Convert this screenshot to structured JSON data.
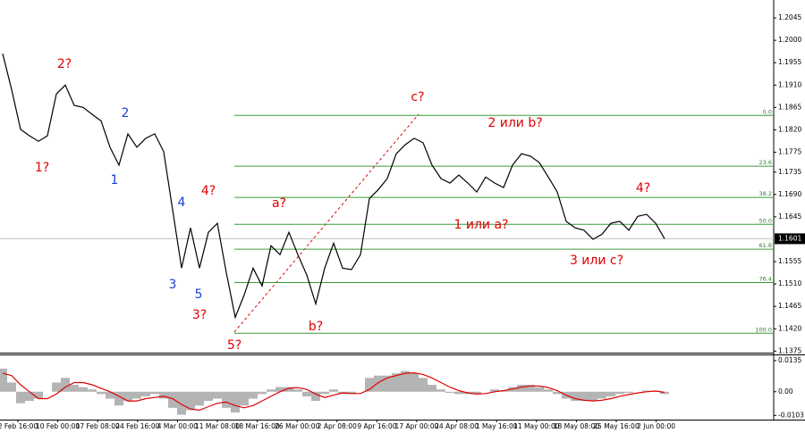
{
  "chart_data": [
    {
      "type": "line",
      "series": [
        {
          "color": "#000000",
          "values": [
            1.1973,
            1.1901,
            1.1821,
            1.1808,
            1.1797,
            1.1808,
            1.1892,
            1.191,
            1.1869,
            1.1865,
            1.1851,
            1.1838,
            1.1785,
            1.1749,
            1.1812,
            1.1785,
            1.1803,
            1.1812,
            1.1776,
            1.1659,
            1.1542,
            1.1623,
            1.1542,
            1.1614,
            1.1632,
            1.1533,
            1.1443,
            1.1488,
            1.1542,
            1.1506,
            1.1587,
            1.1569,
            1.1614,
            1.1569,
            1.1528,
            1.147,
            1.1542,
            1.1592,
            1.1542,
            1.1539,
            1.1569,
            1.1682,
            1.17,
            1.1722,
            1.1772,
            1.179,
            1.1803,
            1.1794,
            1.1749,
            1.1722,
            1.1713,
            1.1729,
            1.1713,
            1.1695,
            1.1725,
            1.1713,
            1.1704,
            1.1749,
            1.1772,
            1.1767,
            1.1754,
            1.1725,
            1.1695,
            1.1636,
            1.1623,
            1.1618,
            1.16,
            1.161,
            1.1632,
            1.1636,
            1.1618,
            1.1646,
            1.165,
            1.1632,
            1.1601
          ]
        }
      ],
      "ylim": [
        1.1372,
        1.2081
      ],
      "yticks": [
        1.2045,
        {
          "value": 1.2,
          "label": "1.2000"
        },
        1.1955,
        {
          "value": 1.191,
          "label": "1.1910"
        },
        1.1865,
        {
          "value": 1.182,
          "label": "1.1820"
        },
        1.1775,
        1.1735,
        {
          "value": 1.169,
          "label": "1.1690"
        },
        1.1645,
        1.1555,
        {
          "value": 1.151,
          "label": "1.1510"
        },
        1.1465,
        {
          "value": 1.142,
          "label": "1.1420"
        },
        1.1375
      ],
      "current_price": 1.1601,
      "fib_color": "#3c9a3c",
      "fib_levels": [
        {
          "label": "0.0",
          "value": 1.1849
        },
        {
          "label": "23.6",
          "value": 1.1747
        },
        {
          "label": "38.2",
          "value": 1.1684
        },
        {
          "label": "50.0",
          "value": 1.163
        },
        {
          "label": "61.8",
          "value": 1.158
        },
        {
          "label": "76.4",
          "value": 1.1513
        },
        {
          "label": "100.0",
          "value": 1.1411
        }
      ],
      "wave_labels": [
        {
          "text": "2?",
          "color": "#e00000"
        },
        {
          "text": "1?",
          "color": "#e00000"
        },
        {
          "text": "1",
          "color": "#1a3fd6"
        },
        {
          "text": "2",
          "color": "#1a3fd6"
        },
        {
          "text": "3",
          "color": "#1a3fd6"
        },
        {
          "text": "4",
          "color": "#1a3fd6"
        },
        {
          "text": "5",
          "color": "#1a3fd6"
        },
        {
          "text": "4?",
          "color": "#e00000"
        },
        {
          "text": "3?",
          "color": "#e00000"
        },
        {
          "text": "5?",
          "color": "#e00000"
        },
        {
          "text": "a?",
          "color": "#e00000"
        },
        {
          "text": "b?",
          "color": "#e00000"
        },
        {
          "text": "c?",
          "color": "#e00000"
        },
        {
          "text": "2 или b?",
          "color": "#e00000"
        },
        {
          "text": "1 или a?",
          "color": "#e00000"
        },
        {
          "text": "3 или c?",
          "color": "#e00000"
        },
        {
          "text": "4?",
          "color": "#e00000"
        }
      ]
    },
    {
      "type": "bar",
      "color": "#b4b4b4",
      "values": [
        0.01,
        0.004,
        -0.005,
        -0.004,
        -0.003,
        0.0,
        0.004,
        0.006,
        0.003,
        0.002,
        0.001,
        -0.001,
        -0.003,
        -0.006,
        -0.004,
        -0.003,
        -0.002,
        -0.001,
        -0.003,
        -0.007,
        -0.01,
        -0.008,
        -0.006,
        -0.004,
        -0.003,
        -0.007,
        -0.009,
        -0.006,
        -0.003,
        -0.001,
        0.001,
        0.002,
        0.002,
        0.001,
        -0.002,
        -0.004,
        -0.001,
        0.001,
        -0.001,
        -0.001,
        0.0,
        0.006,
        0.007,
        0.007,
        0.008,
        0.009,
        0.008,
        0.006,
        0.003,
        0.001,
        -0.0005,
        -0.001,
        -0.001,
        -0.001,
        0.0,
        0.001,
        0.0005,
        0.002,
        0.003,
        0.003,
        0.002,
        0.001,
        -0.001,
        -0.003,
        -0.004,
        -0.004,
        -0.004,
        -0.003,
        -0.002,
        -0.001,
        -0.0005,
        0.0,
        0.0005,
        0.0005,
        -0.001
      ],
      "signal": {
        "color": "#e00000",
        "values": [
          0.008,
          0.007,
          0.003,
          0,
          -0.003,
          -0.003,
          -0.001,
          0.002,
          0.004,
          0.004,
          0.003,
          0.0015,
          0,
          -0.002,
          -0.004,
          -0.004,
          -0.003,
          -0.0025,
          -0.002,
          -0.003,
          -0.0055,
          -0.0075,
          -0.008,
          -0.0065,
          -0.005,
          -0.0045,
          -0.006,
          -0.007,
          -0.006,
          -0.004,
          -0.002,
          0,
          0.0015,
          0.0018,
          0.001,
          -0.001,
          -0.0025,
          -0.0015,
          -0.0005,
          -0.0008,
          -0.0008,
          0.001,
          0.004,
          0.006,
          0.007,
          0.008,
          0.0082,
          0.0075,
          0.006,
          0.004,
          0.002,
          0.0005,
          -0.0005,
          -0.001,
          -0.0008,
          0,
          0.0005,
          0.0012,
          0.002,
          0.0025,
          0.0025,
          0.0018,
          0.0005,
          -0.0015,
          -0.003,
          -0.0037,
          -0.004,
          -0.0037,
          -0.003,
          -0.002,
          -0.0012,
          -0.0005,
          0,
          0.0003,
          -0.0003
        ]
      },
      "ylim": [
        -0.0121,
        0.0158
      ],
      "yticks": [
        0.0135,
        {
          "value": 0,
          "label": "0.00"
        },
        -0.0103
      ],
      "time_labels": [
        "2 Feb 16:00",
        "10 Feb 00:00",
        "17 Feb 08:00",
        "24 Feb 16:00",
        "4 Mar 00:00",
        "11 Mar 08:00",
        "18 Mar 16:00",
        "26 Mar 00:00",
        "2 Apr 08:00",
        "9 Apr 16:00",
        "17 Apr 00:00",
        "24 Apr 08:00",
        "1 May 16:00",
        "11 May 00:00",
        "18 May 08:00",
        "25 May 16:00",
        "2 Jun 00:00"
      ]
    }
  ]
}
